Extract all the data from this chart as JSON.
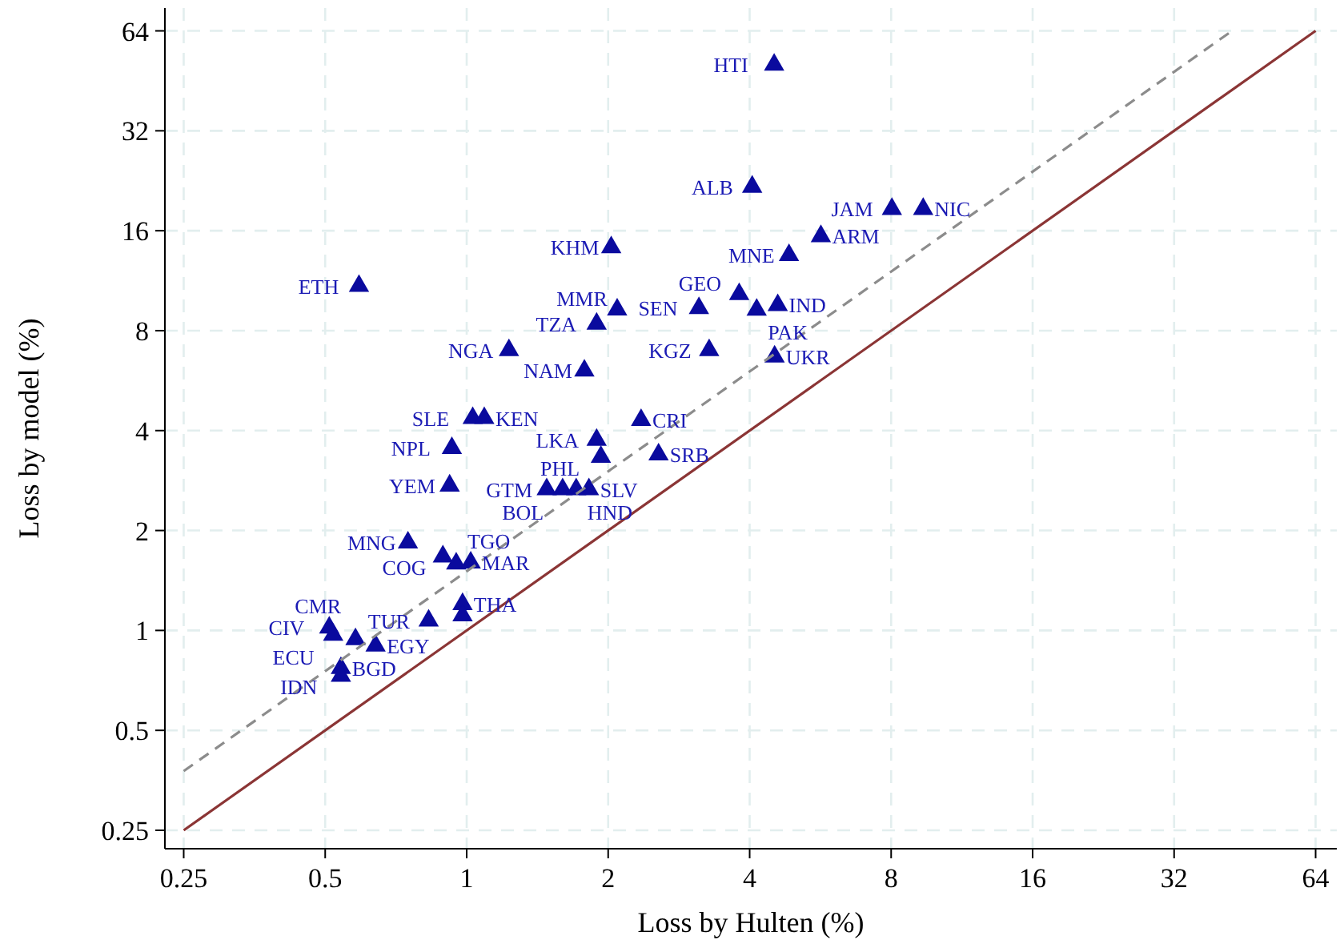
{
  "chart_data": {
    "type": "scatter",
    "xlabel": "Loss by Hulten (%)",
    "ylabel": "Loss by model (%)",
    "log": "xy",
    "grid": true,
    "marker": "triangle",
    "xlim": [
      0.228,
      71
    ],
    "ylim": [
      0.22,
      75
    ],
    "xticks": [
      0.25,
      0.5,
      1,
      2,
      4,
      8,
      16,
      32,
      64
    ],
    "yticks": [
      0.25,
      0.5,
      1,
      2,
      4,
      8,
      16,
      32,
      64
    ],
    "series": [
      {
        "color": "#0a0a9e",
        "x": [
          4.51,
          4.05,
          9.36,
          8.03,
          5.67,
          4.85,
          2.03,
          0.59,
          3.8,
          3.12,
          4.14,
          4.59,
          2.09,
          1.89,
          1.23,
          1.78,
          3.28,
          4.52,
          2.35,
          1.03,
          1.09,
          0.93,
          1.89,
          1.93,
          2.56,
          0.92,
          1.48,
          1.6,
          1.71,
          1.82,
          0.75,
          0.89,
          0.95,
          1.02,
          0.98,
          0.98,
          0.83,
          0.64,
          0.51,
          0.52,
          0.58,
          0.54,
          0.54
        ],
        "values": [
          50.6,
          21.7,
          18.6,
          18.6,
          15.4,
          13.5,
          14.25,
          10.9,
          10.3,
          9.35,
          9.24,
          9.55,
          9.26,
          8.39,
          6.98,
          6.06,
          6.98,
          6.68,
          4.3,
          4.36,
          4.36,
          3.54,
          3.75,
          3.33,
          3.39,
          2.73,
          2.66,
          2.66,
          2.66,
          2.66,
          1.84,
          1.67,
          1.59,
          1.6,
          1.2,
          1.11,
          1.07,
          0.9,
          1.02,
          0.97,
          0.94,
          0.77,
          0.73
        ]
      },
      {
        "type": "line",
        "color": "#8b3535",
        "line_style": "solid",
        "marker": "none",
        "x": [
          0.25,
          64
        ],
        "values": [
          0.25,
          64
        ]
      },
      {
        "type": "line",
        "color": "#8c8c8c",
        "line_style": "dashed",
        "marker": "none",
        "x": [
          0.25,
          42.5
        ],
        "values": [
          0.377,
          64
        ]
      }
    ],
    "annotations": [
      {
        "text": "HTI",
        "x": 4.51,
        "y": 50.6
      },
      {
        "text": "ALB",
        "x": 4.05,
        "y": 21.7
      },
      {
        "text": "NIC",
        "x": 9.36,
        "y": 18.6
      },
      {
        "text": "JAM",
        "x": 8.03,
        "y": 18.6
      },
      {
        "text": "ARM",
        "x": 5.67,
        "y": 15.4
      },
      {
        "text": "MNE",
        "x": 4.85,
        "y": 13.5
      },
      {
        "text": "KHM",
        "x": 2.03,
        "y": 14.25
      },
      {
        "text": "ETH",
        "x": 0.59,
        "y": 10.9
      },
      {
        "text": "GEO",
        "x": 3.8,
        "y": 10.3
      },
      {
        "text": "SEN",
        "x": 3.12,
        "y": 9.35
      },
      {
        "text": "PAK",
        "x": 4.14,
        "y": 9.24
      },
      {
        "text": "IND",
        "x": 4.59,
        "y": 9.55
      },
      {
        "text": "MMR",
        "x": 2.09,
        "y": 9.26
      },
      {
        "text": "TZA",
        "x": 1.89,
        "y": 8.39
      },
      {
        "text": "NGA",
        "x": 1.23,
        "y": 6.98
      },
      {
        "text": "NAM",
        "x": 1.78,
        "y": 6.06
      },
      {
        "text": "KGZ",
        "x": 3.28,
        "y": 6.98
      },
      {
        "text": "UKR",
        "x": 4.52,
        "y": 6.68
      },
      {
        "text": "CRI",
        "x": 2.35,
        "y": 4.3
      },
      {
        "text": "SLE",
        "x": 1.03,
        "y": 4.36
      },
      {
        "text": "KEN",
        "x": 1.09,
        "y": 4.36
      },
      {
        "text": "NPL",
        "x": 0.93,
        "y": 3.54
      },
      {
        "text": "LKA",
        "x": 1.89,
        "y": 3.75
      },
      {
        "text": "PHL",
        "x": 1.93,
        "y": 3.33
      },
      {
        "text": "SRB",
        "x": 2.56,
        "y": 3.39
      },
      {
        "text": "YEM",
        "x": 0.92,
        "y": 2.73
      },
      {
        "text": "GTM",
        "x": 1.48,
        "y": 2.66
      },
      {
        "text": "BOL",
        "x": 1.6,
        "y": 2.66
      },
      {
        "text": "HND",
        "x": 1.71,
        "y": 2.66
      },
      {
        "text": "SLV",
        "x": 1.82,
        "y": 2.66
      },
      {
        "text": "MNG",
        "x": 0.75,
        "y": 1.84
      },
      {
        "text": "COG",
        "x": 0.89,
        "y": 1.67
      },
      {
        "text": "TGO",
        "x": 0.95,
        "y": 1.59
      },
      {
        "text": "MAR",
        "x": 1.02,
        "y": 1.6
      },
      {
        "text": "THA",
        "x": 0.98,
        "y": 1.2
      },
      {
        "text": "TUR",
        "x": 0.83,
        "y": 1.07
      },
      {
        "text": "EGY",
        "x": 0.64,
        "y": 0.9
      },
      {
        "text": "CIV",
        "x": 0.51,
        "y": 1.02
      },
      {
        "text": "ECU",
        "x": 0.52,
        "y": 0.97
      },
      {
        "text": "CMR",
        "x": 0.58,
        "y": 0.94
      },
      {
        "text": "BGD",
        "x": 0.54,
        "y": 0.77
      },
      {
        "text": "IDN",
        "x": 0.54,
        "y": 0.73
      }
    ]
  }
}
